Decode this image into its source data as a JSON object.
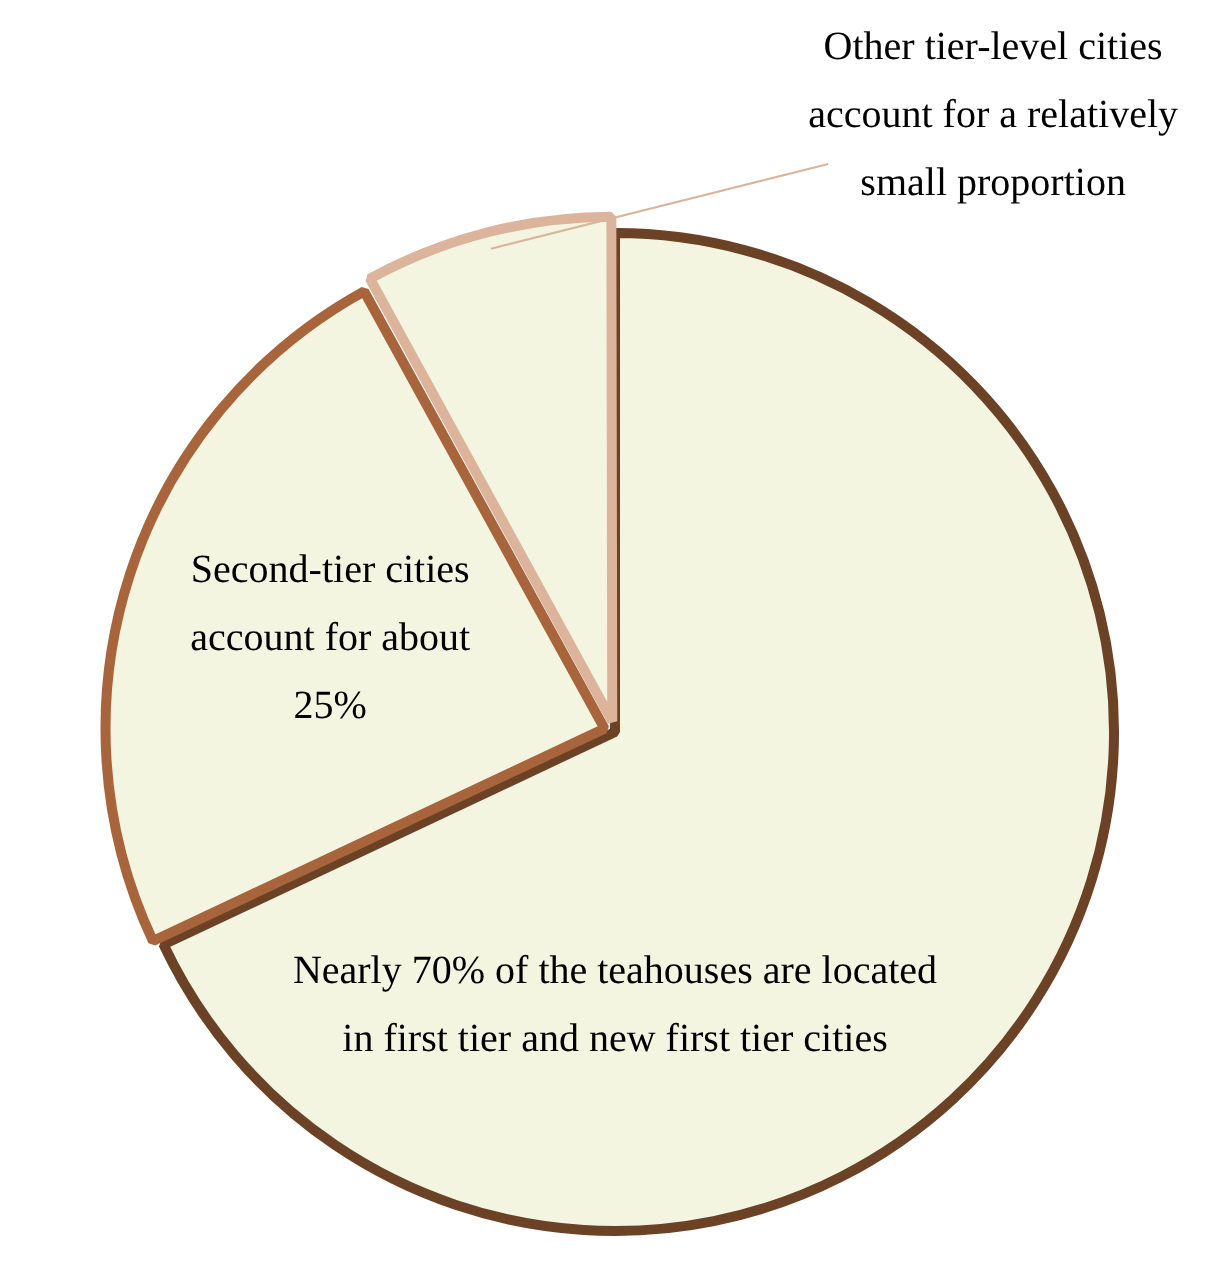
{
  "chart_data": {
    "type": "pie",
    "categories": [
      "Nearly 70% of the teahouses are located in first tier and new first tier cities",
      "Second-tier cities account for about 25%",
      "Other tier-level cities account for a relatively small proportion"
    ],
    "values": [
      68,
      24,
      8
    ],
    "colors": [
      "#6b4226",
      "#a8643a",
      "#dcb49c"
    ],
    "legend": false
  }
}
